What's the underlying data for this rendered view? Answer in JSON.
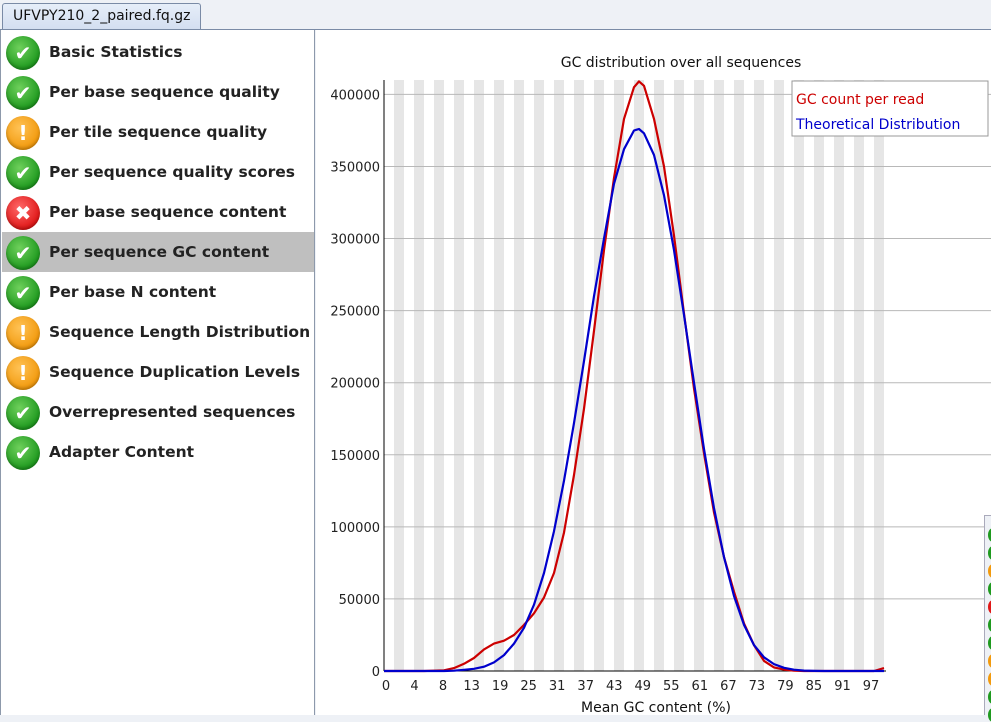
{
  "tab": {
    "label": "UFVPY210_2_paired.fq.gz"
  },
  "modules": [
    {
      "label": "Basic Statistics",
      "status": "pass",
      "icon": "check-icon"
    },
    {
      "label": "Per base sequence quality",
      "status": "pass",
      "icon": "check-icon"
    },
    {
      "label": "Per tile sequence quality",
      "status": "warn",
      "icon": "exclamation-icon"
    },
    {
      "label": "Per sequence quality scores",
      "status": "pass",
      "icon": "check-icon"
    },
    {
      "label": "Per base sequence content",
      "status": "fail",
      "icon": "cross-icon"
    },
    {
      "label": "Per sequence GC content",
      "status": "pass",
      "icon": "check-icon",
      "selected": true
    },
    {
      "label": "Per base N content",
      "status": "pass",
      "icon": "check-icon"
    },
    {
      "label": "Sequence Length Distribution",
      "status": "warn",
      "icon": "exclamation-icon"
    },
    {
      "label": "Sequence Duplication Levels",
      "status": "warn",
      "icon": "exclamation-icon"
    },
    {
      "label": "Overrepresented sequences",
      "status": "pass",
      "icon": "check-icon"
    },
    {
      "label": "Adapter Content",
      "status": "pass",
      "icon": "check-icon"
    }
  ],
  "status_colors": {
    "pass": "#1f9a1f",
    "warn": "#f29a0e",
    "fail": "#e01818"
  },
  "chart_data": {
    "type": "line",
    "title": "GC distribution over all sequences",
    "xlabel": "Mean GC content (%)",
    "ylabel": "",
    "xlim": [
      0,
      100
    ],
    "ylim": [
      0,
      410000
    ],
    "x_ticks": [
      "0",
      "4",
      "8",
      "13",
      "19",
      "25",
      "31",
      "37",
      "43",
      "49",
      "55",
      "61",
      "67",
      "73",
      "79",
      "85",
      "91",
      "97"
    ],
    "y_ticks": [
      0,
      50000,
      100000,
      150000,
      200000,
      250000,
      300000,
      350000,
      400000
    ],
    "grid": "horizontal",
    "legend_position": "top-right",
    "series": [
      {
        "name": "GC count per read",
        "color": "#cc0000",
        "x": [
          0,
          4,
          8,
          12,
          14,
          16,
          18,
          20,
          22,
          24,
          26,
          28,
          30,
          32,
          34,
          36,
          38,
          40,
          42,
          44,
          46,
          48,
          50,
          51,
          52,
          54,
          56,
          58,
          60,
          62,
          64,
          66,
          68,
          70,
          72,
          74,
          76,
          78,
          80,
          82,
          84,
          86,
          88,
          90,
          92,
          94,
          96,
          98,
          100
        ],
        "y": [
          0,
          0,
          0,
          500,
          2000,
          5000,
          9000,
          15000,
          19000,
          21000,
          25000,
          32000,
          40000,
          51000,
          68000,
          96000,
          136000,
          182000,
          236000,
          292000,
          342000,
          383000,
          405000,
          409000,
          406000,
          383000,
          350000,
          302000,
          248000,
          196000,
          151000,
          110000,
          79000,
          55000,
          33000,
          18000,
          7000,
          2500,
          1000,
          300,
          0,
          0,
          0,
          0,
          0,
          0,
          0,
          0,
          2000
        ]
      },
      {
        "name": "Theoretical Distribution",
        "color": "#0000cc",
        "x": [
          0,
          4,
          8,
          12,
          14,
          16,
          18,
          20,
          22,
          24,
          26,
          28,
          30,
          32,
          34,
          36,
          38,
          40,
          42,
          44,
          46,
          48,
          50,
          51,
          52,
          54,
          56,
          58,
          60,
          62,
          64,
          66,
          68,
          70,
          72,
          74,
          76,
          78,
          80,
          82,
          84,
          86,
          88,
          90,
          92,
          94,
          96,
          98,
          100
        ],
        "y": [
          0,
          0,
          0,
          0,
          200,
          800,
          1500,
          3000,
          6000,
          11000,
          19000,
          30000,
          46000,
          68000,
          97000,
          132000,
          172000,
          215000,
          260000,
          300000,
          338000,
          362000,
          375000,
          376000,
          373000,
          358000,
          330000,
          292000,
          247000,
          200000,
          154000,
          113000,
          79000,
          52000,
          32000,
          18000,
          9500,
          4800,
          2200,
          900,
          300,
          100,
          0,
          0,
          0,
          0,
          0,
          0,
          0
        ]
      }
    ]
  }
}
